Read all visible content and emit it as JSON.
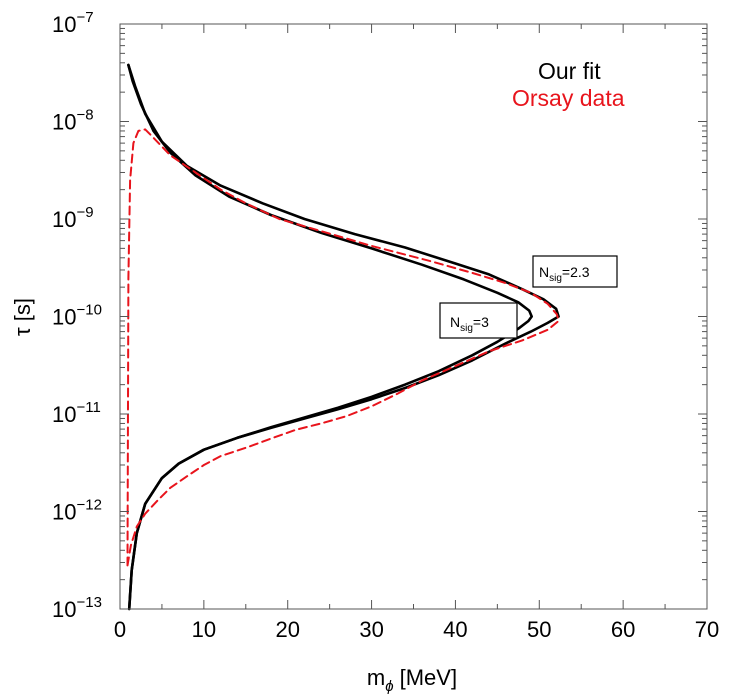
{
  "chart_data": {
    "type": "line",
    "xlabel": "m",
    "xlabel_sub": "ϕ",
    "xlabel_unit": "[MeV]",
    "ylabel": "τ [s]",
    "xlim": [
      0,
      70
    ],
    "ylim": [
      1e-13,
      1e-07
    ],
    "y_scale": "log",
    "grid": false,
    "x_ticks": [
      0,
      10,
      20,
      30,
      40,
      50,
      60,
      70
    ],
    "y_ticks": [
      {
        "value": 1e-13,
        "base": "10",
        "exp": "−13"
      },
      {
        "value": 1e-12,
        "base": "10",
        "exp": "−12"
      },
      {
        "value": 1e-11,
        "base": "10",
        "exp": "−11"
      },
      {
        "value": 1e-10,
        "base": "10",
        "exp": "−10"
      },
      {
        "value": 1e-09,
        "base": "10",
        "exp": "−9"
      },
      {
        "value": 1e-08,
        "base": "10",
        "exp": "−8"
      },
      {
        "value": 1e-07,
        "base": "10",
        "exp": "−7"
      }
    ],
    "legend": {
      "placement": "top-right",
      "entries": [
        {
          "label": "Our fit",
          "color": "#000000"
        },
        {
          "label": "Orsay data",
          "color": "#e8141c"
        }
      ]
    },
    "series": [
      {
        "label_key": "nsig23",
        "color": "#000000",
        "style": "solid",
        "points": [
          [
            1.1,
            1e-13
          ],
          [
            1.4,
            2.5e-13
          ],
          [
            2.0,
            6e-13
          ],
          [
            3,
            1.2e-12
          ],
          [
            5,
            2.2e-12
          ],
          [
            7,
            3.1e-12
          ],
          [
            10,
            4.3e-12
          ],
          [
            14,
            5.7e-12
          ],
          [
            18,
            7.2e-12
          ],
          [
            22,
            9e-12
          ],
          [
            26,
            1.12e-11
          ],
          [
            30,
            1.42e-11
          ],
          [
            34,
            1.85e-11
          ],
          [
            38,
            2.5e-11
          ],
          [
            42,
            3.55e-11
          ],
          [
            46,
            5.3e-11
          ],
          [
            49,
            7e-11
          ],
          [
            51,
            8.6e-11
          ],
          [
            52.3,
            1e-10
          ],
          [
            52,
            1.2e-10
          ],
          [
            50.5,
            1.5e-10
          ],
          [
            48,
            1.9e-10
          ],
          [
            44,
            2.7e-10
          ],
          [
            40,
            3.5e-10
          ],
          [
            34,
            5.1e-10
          ],
          [
            28,
            7e-10
          ],
          [
            22,
            1e-09
          ],
          [
            17,
            1.45e-09
          ],
          [
            12,
            2.2e-09
          ],
          [
            8,
            3.5e-09
          ],
          [
            5,
            6.2e-09
          ],
          [
            3,
            1.2e-08
          ],
          [
            1.8,
            2.3e-08
          ],
          [
            1.0,
            3.8e-08
          ]
        ]
      },
      {
        "label_key": "nsig3",
        "color": "#000000",
        "style": "solid",
        "points": [
          [
            1.1,
            1e-13
          ],
          [
            1.4,
            2.5e-13
          ],
          [
            2.0,
            6e-13
          ],
          [
            3,
            1.2e-12
          ],
          [
            5,
            2.2e-12
          ],
          [
            7,
            3.1e-12
          ],
          [
            10,
            4.3e-12
          ],
          [
            14,
            5.7e-12
          ],
          [
            18,
            7.3e-12
          ],
          [
            22,
            9.2e-12
          ],
          [
            26,
            1.16e-11
          ],
          [
            30,
            1.5e-11
          ],
          [
            34,
            2e-11
          ],
          [
            38,
            2.75e-11
          ],
          [
            42,
            4e-11
          ],
          [
            45,
            5.5e-11
          ],
          [
            47.5,
            7.5e-11
          ],
          [
            48.7,
            9e-11
          ],
          [
            49.1,
            1e-10
          ],
          [
            48.8,
            1.15e-10
          ],
          [
            47.5,
            1.4e-10
          ],
          [
            45,
            1.75e-10
          ],
          [
            41,
            2.4e-10
          ],
          [
            36,
            3.4e-10
          ],
          [
            30,
            5e-10
          ],
          [
            24,
            7.2e-10
          ],
          [
            18,
            1.1e-09
          ],
          [
            13,
            1.7e-09
          ],
          [
            9,
            2.8e-09
          ],
          [
            6,
            4.8e-09
          ],
          [
            4,
            8e-09
          ],
          [
            2.5,
            1.5e-08
          ],
          [
            1.5,
            2.6e-08
          ],
          [
            1.0,
            3.8e-08
          ]
        ]
      },
      {
        "label_key": "orsay",
        "color": "#e8141c",
        "style": "dashed",
        "points": [
          [
            0.9,
            2.8e-13
          ],
          [
            1.3,
            4.5e-13
          ],
          [
            2,
            7e-13
          ],
          [
            3,
            9.5e-13
          ],
          [
            4.5,
            1.3e-12
          ],
          [
            6,
            1.75e-12
          ],
          [
            8,
            2.3e-12
          ],
          [
            10,
            3e-12
          ],
          [
            12,
            3.7e-12
          ],
          [
            15,
            4.5e-12
          ],
          [
            18,
            5.6e-12
          ],
          [
            21,
            6.9e-12
          ],
          [
            24,
            8e-12
          ],
          [
            27,
            9.5e-12
          ],
          [
            30,
            1.2e-11
          ],
          [
            33,
            1.6e-11
          ],
          [
            36,
            2.2e-11
          ],
          [
            40,
            3.1e-11
          ],
          [
            44,
            4.4e-11
          ],
          [
            48,
            5.7e-11
          ],
          [
            51,
            7.3e-11
          ],
          [
            52.3,
            9e-11
          ],
          [
            52.1,
            1.05e-10
          ],
          [
            51,
            1.35e-10
          ],
          [
            49,
            1.75e-10
          ],
          [
            46,
            2.2e-10
          ],
          [
            42,
            2.8e-10
          ],
          [
            37,
            3.7e-10
          ],
          [
            30,
            5.3e-10
          ],
          [
            24,
            7.5e-10
          ],
          [
            19,
            1e-09
          ],
          [
            15,
            1.45e-09
          ],
          [
            12,
            2e-09
          ],
          [
            9,
            3e-09
          ],
          [
            6,
            4.5e-09
          ],
          [
            4,
            6.8e-09
          ],
          [
            3,
            8.3e-09
          ],
          [
            2.2,
            8e-09
          ],
          [
            1.6,
            6e-09
          ],
          [
            1.2,
            2.5e-09
          ],
          [
            1.0,
            2.5e-10
          ],
          [
            0.9,
            2.8e-13
          ]
        ]
      }
    ],
    "annotations": {
      "nsig23": {
        "main": "N",
        "sub": "sig",
        "value": "=2.3"
      },
      "nsig3": {
        "main": "N",
        "sub": "sig",
        "value": "=3"
      }
    }
  }
}
